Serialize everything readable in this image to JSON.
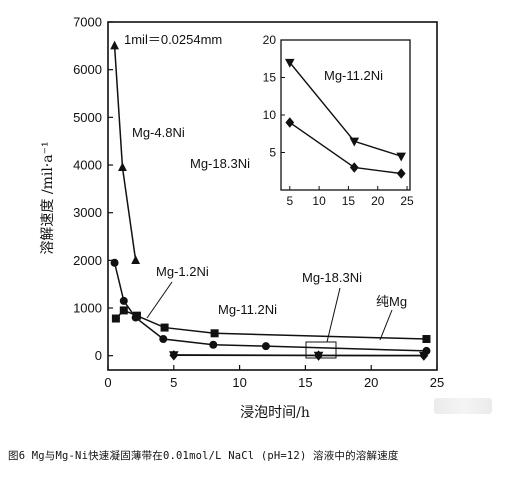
{
  "chart_data": {
    "type": "line",
    "annotation": "1mil＝0.0254mm",
    "xlabel": "浸泡时间/h",
    "ylabel": "溶解速度 /mil·a⁻¹",
    "xlim": [
      0,
      25
    ],
    "ylim": [
      -300,
      7000
    ],
    "xticks": [
      "0",
      "5",
      "10",
      "15",
      "20",
      "25"
    ],
    "yticks": [
      "0",
      "1000",
      "2000",
      "3000",
      "4000",
      "5000",
      "6000",
      "7000"
    ],
    "grid": false,
    "series": [
      {
        "name": "Mg-4.8Ni",
        "marker": "triangle-up",
        "x": [
          0.5,
          1.1,
          2.1
        ],
        "y": [
          6500,
          3950,
          2000
        ]
      },
      {
        "name": "Mg-1.2Ni",
        "marker": "circle",
        "x": [
          0.5,
          1.2,
          2.1,
          4.2,
          8.0,
          12.0,
          24.2
        ],
        "y": [
          1950,
          1150,
          800,
          350,
          230,
          200,
          100
        ]
      },
      {
        "name": "纯Mg",
        "marker": "square",
        "x": [
          0.6,
          1.2,
          2.2,
          4.3,
          8.1,
          24.2
        ],
        "y": [
          780,
          950,
          840,
          590,
          470,
          350
        ]
      },
      {
        "name": "Mg-18.3Ni",
        "marker": "diamond",
        "x": [
          5,
          16,
          24
        ],
        "y": [
          9,
          3,
          2.2
        ]
      },
      {
        "name": "Mg-11.2Ni",
        "marker": "triangle-down",
        "x": [
          5,
          16,
          24
        ],
        "y": [
          17,
          6.5,
          4.5
        ]
      }
    ],
    "inset": {
      "xlim": [
        3.5,
        25.5
      ],
      "ylim": [
        0,
        20
      ],
      "xticks": [
        "5",
        "10",
        "15",
        "20",
        "25"
      ],
      "yticks": [
        "5",
        "10",
        "15",
        "20"
      ],
      "series": [
        {
          "name": "Mg-11.2Ni",
          "marker": "triangle-down",
          "x": [
            5,
            16,
            24
          ],
          "y": [
            17,
            6.5,
            4.5
          ]
        },
        {
          "name": "Mg-18.3Ni",
          "marker": "diamond",
          "x": [
            5,
            16,
            24
          ],
          "y": [
            9,
            3,
            2.2
          ]
        }
      ]
    }
  },
  "caption": "图6   Mg与Mg-Ni快速凝固薄带在0.01mol/L NaCl (pH=12) 溶液中的溶解速度"
}
